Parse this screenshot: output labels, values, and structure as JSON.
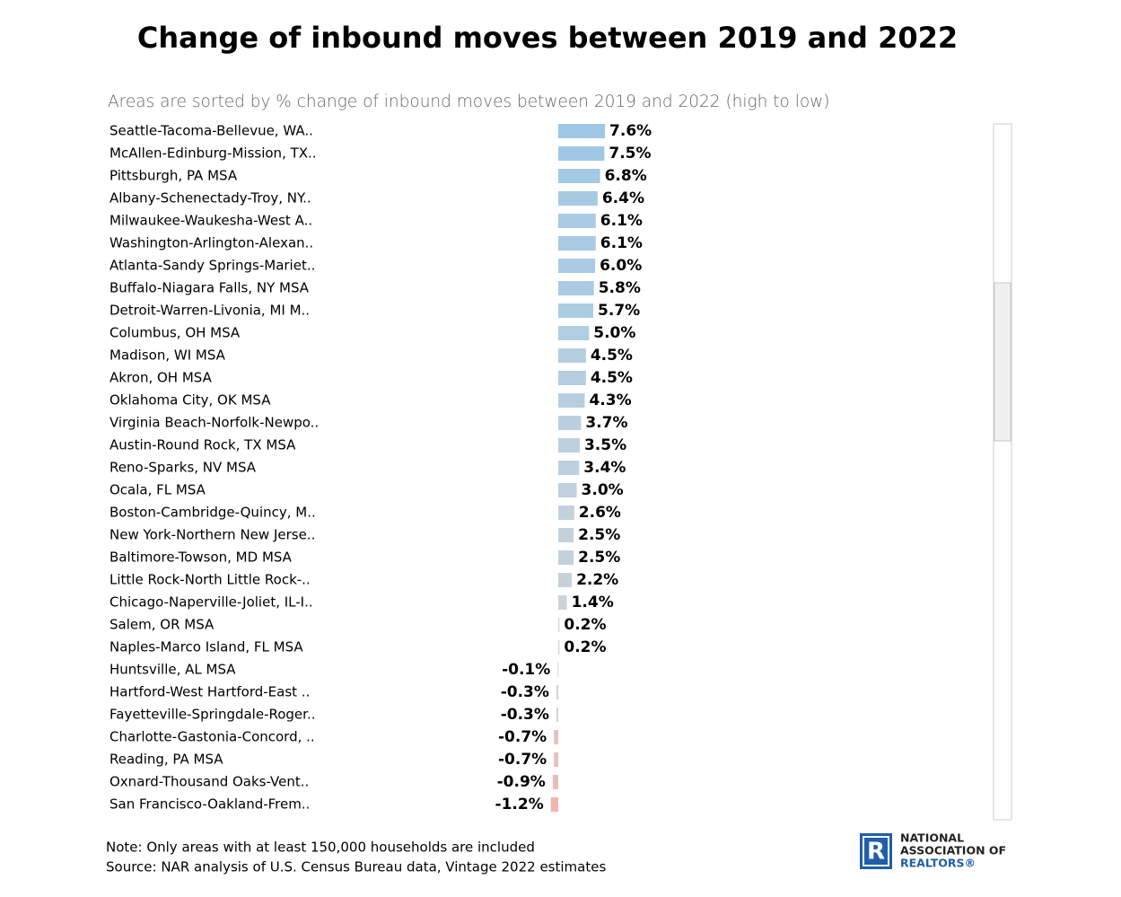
{
  "chart_data": {
    "type": "bar",
    "orientation": "horizontal",
    "title": "Change of inbound moves between 2019 and 2022",
    "subtitle": "Areas are sorted by % change of inbound moves between 2019 and 2022 (high to low)",
    "categories": [
      "Seattle-Tacoma-Bellevue, WA..",
      "McAllen-Edinburg-Mission, TX..",
      "Pittsburgh, PA MSA",
      "Albany-Schenectady-Troy, NY..",
      "Milwaukee-Waukesha-West A..",
      "Washington-Arlington-Alexan..",
      "Atlanta-Sandy Springs-Mariet..",
      "Buffalo-Niagara Falls, NY MSA",
      "Detroit-Warren-Livonia, MI M..",
      "Columbus, OH MSA",
      "Madison, WI MSA",
      "Akron, OH MSA",
      "Oklahoma City, OK MSA",
      "Virginia Beach-Norfolk-Newpo..",
      "Austin-Round Rock, TX MSA",
      "Reno-Sparks, NV MSA",
      "Ocala, FL MSA",
      "Boston-Cambridge-Quincy, M..",
      "New York-Northern New Jerse..",
      "Baltimore-Towson, MD MSA",
      "Little Rock-North Little Rock-..",
      "Chicago-Naperville-Joliet, IL-I..",
      "Salem, OR MSA",
      "Naples-Marco Island, FL MSA",
      "Huntsville, AL MSA",
      "Hartford-West Hartford-East ..",
      "Fayetteville-Springdale-Roger..",
      "Charlotte-Gastonia-Concord, ..",
      "Reading, PA MSA",
      "Oxnard-Thousand Oaks-Vent..",
      "San Francisco-Oakland-Frem.."
    ],
    "values": [
      7.6,
      7.5,
      6.8,
      6.4,
      6.1,
      6.1,
      6.0,
      5.8,
      5.7,
      5.0,
      4.5,
      4.5,
      4.3,
      3.7,
      3.5,
      3.4,
      3.0,
      2.6,
      2.5,
      2.5,
      2.2,
      1.4,
      0.2,
      0.2,
      -0.1,
      -0.3,
      -0.3,
      -0.7,
      -0.7,
      -0.9,
      -1.2
    ],
    "value_labels": [
      "7.6%",
      "7.5%",
      "6.8%",
      "6.4%",
      "6.1%",
      "6.1%",
      "6.0%",
      "5.8%",
      "5.7%",
      "5.0%",
      "4.5%",
      "4.5%",
      "4.3%",
      "3.7%",
      "3.5%",
      "3.4%",
      "3.0%",
      "2.6%",
      "2.5%",
      "2.5%",
      "2.2%",
      "1.4%",
      "0.2%",
      "0.2%",
      "-0.1%",
      "-0.3%",
      "-0.3%",
      "-0.7%",
      "-0.7%",
      "-0.9%",
      "-1.2%"
    ],
    "color_scale": {
      "high": "#9ec8e6",
      "mid": "#d6d6d6",
      "low": "#f2b4ae"
    },
    "notes": [
      "Note: Only areas with at least 150,000 households are included",
      "Source: NAR analysis of U.S. Census Bureau data, Vintage 2022 estimates"
    ],
    "logo": {
      "letter": "R",
      "lines": [
        "NATIONAL",
        "ASSOCIATION OF",
        "REALTORS®"
      ]
    }
  }
}
